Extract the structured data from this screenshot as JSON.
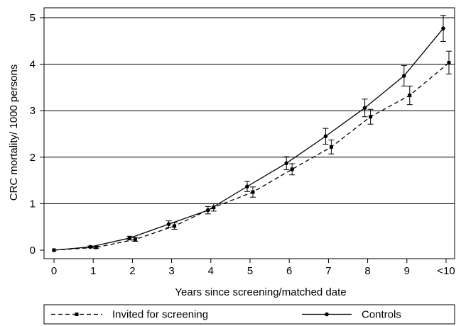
{
  "chart_data": {
    "type": "line",
    "title": "",
    "xlabel": "Years since screening/matched date",
    "ylabel": "CRC mortality/ 1000 persons",
    "categories": [
      "0",
      "1",
      "2",
      "3",
      "4",
      "5",
      "6",
      "7",
      "8",
      "9",
      "<10"
    ],
    "ylim": [
      0,
      5
    ],
    "yticks": [
      0,
      1,
      2,
      3,
      4,
      5
    ],
    "grid": "horizontal",
    "legend_position": "bottom",
    "series": [
      {
        "name": "Invited for screening",
        "line_style": "dashed",
        "marker": "square",
        "values": [
          0.0,
          0.06,
          0.23,
          0.52,
          0.92,
          1.25,
          1.74,
          2.22,
          2.87,
          3.33,
          4.03
        ],
        "error_low": [
          0.0,
          0.04,
          0.19,
          0.45,
          0.84,
          1.14,
          1.62,
          2.07,
          2.71,
          3.13,
          3.79
        ],
        "error_high": [
          0.0,
          0.08,
          0.27,
          0.59,
          1.0,
          1.36,
          1.86,
          2.37,
          3.03,
          3.53,
          4.28
        ]
      },
      {
        "name": "Controls",
        "line_style": "solid",
        "marker": "circle",
        "values": [
          0.0,
          0.07,
          0.26,
          0.56,
          0.86,
          1.37,
          1.87,
          2.45,
          3.06,
          3.75,
          4.77
        ],
        "error_low": [
          0.0,
          0.05,
          0.22,
          0.49,
          0.78,
          1.26,
          1.73,
          2.28,
          2.87,
          3.53,
          4.49
        ],
        "error_high": [
          0.0,
          0.09,
          0.3,
          0.63,
          0.94,
          1.48,
          2.01,
          2.62,
          3.25,
          3.97,
          5.05
        ]
      }
    ]
  }
}
